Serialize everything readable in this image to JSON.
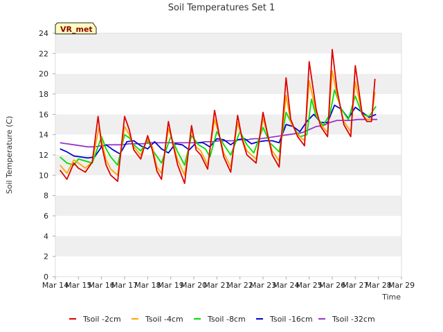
{
  "chart_data": {
    "type": "line",
    "title": "Soil Temperatures Set 1",
    "xlabel": "Time",
    "ylabel": "Soil Temperature (C)",
    "ylim": [
      0,
      24
    ],
    "yticks": [
      0,
      2,
      4,
      6,
      8,
      10,
      12,
      14,
      16,
      18,
      20,
      22,
      24
    ],
    "xlim": [
      0,
      15
    ],
    "xticks": [
      0,
      1,
      2,
      3,
      4,
      5,
      6,
      7,
      8,
      9,
      10,
      11,
      12,
      13,
      14,
      15
    ],
    "xtick_labels": [
      "Mar 14",
      "Mar 15",
      "Mar 16",
      "Mar 17",
      "Mar 18",
      "Mar 19",
      "Mar 20",
      "Mar 21",
      "Mar 22",
      "Mar 23",
      "Mar 24",
      "Mar 25",
      "Mar 26",
      "Mar 27",
      "Mar 28",
      "Mar 29"
    ],
    "grid": "horizontal bands",
    "legend_position": "bottom",
    "badge": "VR_met",
    "series": [
      {
        "name": "Tsoil -2cm",
        "color": "#dd0000",
        "x": [
          0.2,
          0.5,
          0.8,
          1.0,
          1.3,
          1.6,
          1.85,
          2.0,
          2.2,
          2.4,
          2.7,
          3.0,
          3.2,
          3.4,
          3.7,
          4.0,
          4.2,
          4.4,
          4.6,
          4.9,
          5.1,
          5.3,
          5.6,
          5.9,
          6.1,
          6.3,
          6.6,
          6.9,
          7.1,
          7.3,
          7.6,
          7.9,
          8.1,
          8.3,
          8.7,
          9.0,
          9.2,
          9.4,
          9.7,
          10.0,
          10.2,
          10.5,
          10.8,
          11.0,
          11.3,
          11.5,
          11.8,
          12.0,
          12.2,
          12.5,
          12.8,
          13.0,
          13.3,
          13.5,
          13.7,
          13.85
        ],
        "y": [
          10.5,
          9.6,
          11.2,
          10.7,
          10.3,
          11.3,
          15.8,
          13.0,
          11.0,
          10.0,
          9.4,
          15.8,
          14.5,
          12.5,
          11.6,
          13.9,
          12.5,
          10.4,
          9.6,
          15.3,
          13.0,
          11.0,
          9.2,
          14.9,
          12.5,
          12.0,
          10.6,
          16.4,
          14.0,
          11.8,
          10.3,
          15.9,
          13.5,
          12.0,
          11.2,
          16.2,
          14.0,
          12.0,
          10.8,
          19.6,
          15.5,
          13.8,
          12.9,
          21.2,
          16.5,
          14.8,
          13.8,
          22.4,
          18.5,
          15.0,
          13.8,
          20.8,
          16.0,
          15.3,
          15.3,
          19.5
        ]
      },
      {
        "name": "Tsoil -4cm",
        "color": "#ffa500",
        "x": [
          0.2,
          0.5,
          0.8,
          1.0,
          1.3,
          1.6,
          1.9,
          2.0,
          2.2,
          2.4,
          2.7,
          3.0,
          3.2,
          3.4,
          3.7,
          4.0,
          4.2,
          4.4,
          4.6,
          4.9,
          5.1,
          5.3,
          5.6,
          5.9,
          6.1,
          6.3,
          6.6,
          6.9,
          7.1,
          7.3,
          7.6,
          7.9,
          8.1,
          8.3,
          8.7,
          9.0,
          9.2,
          9.4,
          9.7,
          10.0,
          10.2,
          10.5,
          10.8,
          11.0,
          11.3,
          11.5,
          11.8,
          12.0,
          12.2,
          12.5,
          12.8,
          13.0,
          13.3,
          13.5,
          13.7,
          13.85
        ],
        "y": [
          11.0,
          10.2,
          11.5,
          11.2,
          10.7,
          11.3,
          14.8,
          13.5,
          11.5,
          10.6,
          10.0,
          14.8,
          14.0,
          12.8,
          12.0,
          13.6,
          12.8,
          10.8,
          10.2,
          14.6,
          13.2,
          11.5,
          10.0,
          14.5,
          12.8,
          12.4,
          11.0,
          15.5,
          14.0,
          12.2,
          10.8,
          15.2,
          13.6,
          12.4,
          11.6,
          15.6,
          14.0,
          12.4,
          11.4,
          17.9,
          15.2,
          14.0,
          13.4,
          19.3,
          16.2,
          15.0,
          14.2,
          20.3,
          18.0,
          15.3,
          14.3,
          19.2,
          16.0,
          15.5,
          15.5,
          18.2
        ]
      },
      {
        "name": "Tsoil -8cm",
        "color": "#00dd00",
        "x": [
          0.2,
          0.5,
          0.8,
          1.0,
          1.3,
          1.6,
          2.0,
          2.2,
          2.4,
          2.7,
          3.0,
          3.2,
          3.4,
          3.7,
          4.0,
          4.3,
          4.6,
          5.0,
          5.3,
          5.6,
          5.9,
          6.2,
          6.5,
          6.7,
          7.0,
          7.3,
          7.6,
          8.0,
          8.3,
          8.6,
          9.0,
          9.3,
          9.7,
          10.0,
          10.3,
          10.6,
          10.9,
          11.1,
          11.3,
          11.6,
          11.9,
          12.1,
          12.4,
          12.7,
          13.0,
          13.3,
          13.6,
          13.9
        ],
        "y": [
          11.8,
          11.2,
          11.0,
          11.6,
          11.4,
          11.2,
          13.8,
          12.6,
          11.8,
          11.0,
          14.0,
          13.7,
          13.0,
          12.4,
          13.4,
          12.2,
          11.2,
          13.8,
          12.3,
          11.0,
          13.9,
          13.0,
          12.6,
          11.8,
          14.3,
          13.0,
          12.0,
          14.3,
          13.0,
          12.2,
          14.7,
          13.2,
          12.3,
          16.2,
          14.8,
          13.8,
          14.0,
          17.5,
          15.8,
          14.9,
          16.0,
          18.4,
          16.5,
          15.5,
          17.8,
          16.0,
          15.8,
          16.8
        ]
      },
      {
        "name": "Tsoil -16cm",
        "color": "#0000cc",
        "x": [
          0.2,
          0.5,
          0.8,
          1.1,
          1.4,
          1.7,
          2.0,
          2.2,
          2.5,
          2.8,
          3.1,
          3.4,
          3.7,
          4.0,
          4.3,
          4.6,
          4.9,
          5.2,
          5.5,
          5.8,
          6.1,
          6.4,
          6.7,
          7.0,
          7.3,
          7.6,
          7.9,
          8.2,
          8.5,
          8.8,
          9.1,
          9.4,
          9.7,
          10.0,
          10.3,
          10.6,
          10.9,
          11.2,
          11.5,
          11.8,
          12.1,
          12.4,
          12.7,
          13.0,
          13.3,
          13.6,
          13.9
        ],
        "y": [
          12.6,
          12.3,
          11.9,
          11.8,
          11.7,
          11.8,
          12.8,
          13.0,
          12.5,
          12.1,
          13.3,
          13.4,
          12.9,
          12.6,
          13.3,
          12.6,
          12.2,
          13.1,
          13.0,
          12.5,
          13.2,
          13.2,
          12.8,
          13.6,
          13.5,
          13.0,
          13.5,
          13.6,
          13.1,
          13.3,
          13.4,
          13.4,
          13.2,
          15.0,
          14.8,
          14.3,
          15.3,
          16.0,
          15.2,
          15.2,
          16.9,
          16.5,
          15.6,
          16.7,
          16.2,
          15.7,
          16.0
        ]
      },
      {
        "name": "Tsoil -32cm",
        "color": "#9933cc",
        "x": [
          0.2,
          0.5,
          0.8,
          1.1,
          1.4,
          1.7,
          2.0,
          2.3,
          2.6,
          2.9,
          3.2,
          3.5,
          3.8,
          4.1,
          4.4,
          4.7,
          5.0,
          5.3,
          5.6,
          5.9,
          6.2,
          6.5,
          6.8,
          7.1,
          7.4,
          7.7,
          8.0,
          8.3,
          8.6,
          8.9,
          9.2,
          9.5,
          9.8,
          10.1,
          10.4,
          10.7,
          11.0,
          11.3,
          11.6,
          11.9,
          12.2,
          12.5,
          12.8,
          13.1,
          13.4,
          13.7,
          13.95
        ],
        "y": [
          13.2,
          13.1,
          13.0,
          12.9,
          12.8,
          12.8,
          12.9,
          13.0,
          13.0,
          13.0,
          13.1,
          13.1,
          13.1,
          13.2,
          13.2,
          13.2,
          13.2,
          13.2,
          13.2,
          13.2,
          13.2,
          13.3,
          13.3,
          13.4,
          13.4,
          13.4,
          13.5,
          13.5,
          13.6,
          13.6,
          13.7,
          13.8,
          13.9,
          14.0,
          14.1,
          14.2,
          14.5,
          14.8,
          14.9,
          15.2,
          15.4,
          15.4,
          15.4,
          15.5,
          15.5,
          15.5,
          15.5
        ]
      }
    ]
  }
}
